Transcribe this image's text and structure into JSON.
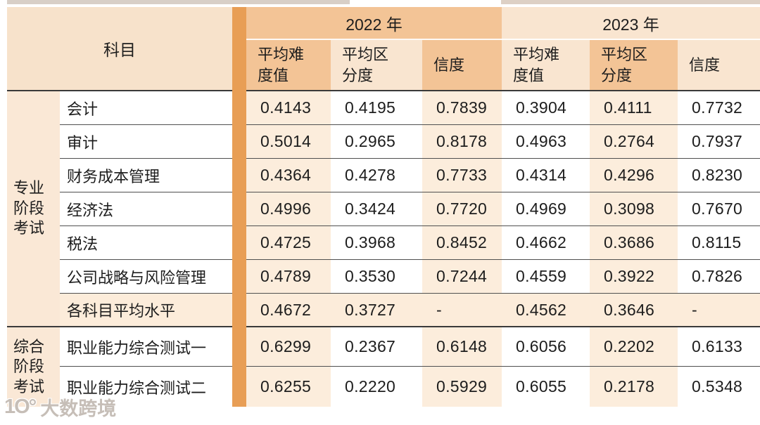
{
  "table": {
    "subject_header": "科目",
    "year_groups": [
      {
        "label": "2022 年",
        "sub_headers": [
          [
            "平均难",
            "度值"
          ],
          [
            "平均区",
            "分度"
          ],
          [
            "信度"
          ]
        ]
      },
      {
        "label": "2023 年",
        "sub_headers": [
          [
            "平均难",
            "度值"
          ],
          [
            "平均区",
            "分度"
          ],
          [
            "信度"
          ]
        ]
      }
    ],
    "sub_header_labels": [
      "平均难度值",
      "平均区分度",
      "信度",
      "平均难度值",
      "平均区分度",
      "信度"
    ],
    "groups": [
      {
        "label": "专业阶段考试",
        "lines": [
          "专业",
          "阶段",
          "考试"
        ],
        "row_start": 3,
        "row_span": 7
      },
      {
        "label": "综合阶段考试",
        "lines": [
          "综合",
          "阶段",
          "考试"
        ],
        "row_start": 10,
        "row_span": 2
      }
    ],
    "rows": [
      {
        "group": "专业阶段考试",
        "subject": "会计",
        "summary": false,
        "values": [
          "0.4143",
          "0.4195",
          "0.7839",
          "0.3904",
          "0.4111",
          "0.7732"
        ]
      },
      {
        "group": "专业阶段考试",
        "subject": "审计",
        "summary": false,
        "values": [
          "0.5014",
          "0.2965",
          "0.8178",
          "0.4963",
          "0.2764",
          "0.7937"
        ]
      },
      {
        "group": "专业阶段考试",
        "subject": "财务成本管理",
        "summary": false,
        "values": [
          "0.4364",
          "0.4278",
          "0.7733",
          "0.4314",
          "0.4296",
          "0.8230"
        ]
      },
      {
        "group": "专业阶段考试",
        "subject": "经济法",
        "summary": false,
        "values": [
          "0.4996",
          "0.3424",
          "0.7720",
          "0.4969",
          "0.3098",
          "0.7670"
        ]
      },
      {
        "group": "专业阶段考试",
        "subject": "税法",
        "summary": false,
        "values": [
          "0.4725",
          "0.3968",
          "0.8452",
          "0.4662",
          "0.3686",
          "0.8115"
        ]
      },
      {
        "group": "专业阶段考试",
        "subject": "公司战略与风险管理",
        "summary": false,
        "values": [
          "0.4789",
          "0.3530",
          "0.7244",
          "0.4559",
          "0.3922",
          "0.7826"
        ]
      },
      {
        "group": "专业阶段考试",
        "subject": "各科目平均水平",
        "summary": true,
        "values": [
          "0.4672",
          "0.3727",
          "-",
          "0.4562",
          "0.3646",
          "-"
        ]
      },
      {
        "group": "综合阶段考试",
        "subject": "职业能力综合测试一",
        "summary": false,
        "values": [
          "0.6299",
          "0.2367",
          "0.6148",
          "0.6056",
          "0.2202",
          "0.6133"
        ]
      },
      {
        "group": "综合阶段考试",
        "subject": "职业能力综合测试二",
        "summary": false,
        "values": [
          "0.6255",
          "0.2220",
          "0.5929",
          "0.6055",
          "0.2178",
          "0.5348"
        ]
      }
    ]
  },
  "watermark": {
    "logo": "1Ο°",
    "text": "大数跨境"
  },
  "colors": {
    "header_dark": "#f3c496",
    "header_light": "#f9e5d0",
    "subject_header_bg": "#f7e2cb",
    "accent_bar": "#e89e55",
    "group_column_bg": "#fae8d6",
    "stripe_peach": "#fceddc",
    "summary_row_bg": "#fcecda",
    "divider_line": "#4f4f4f",
    "heavy_line": "#3a3a3a"
  }
}
